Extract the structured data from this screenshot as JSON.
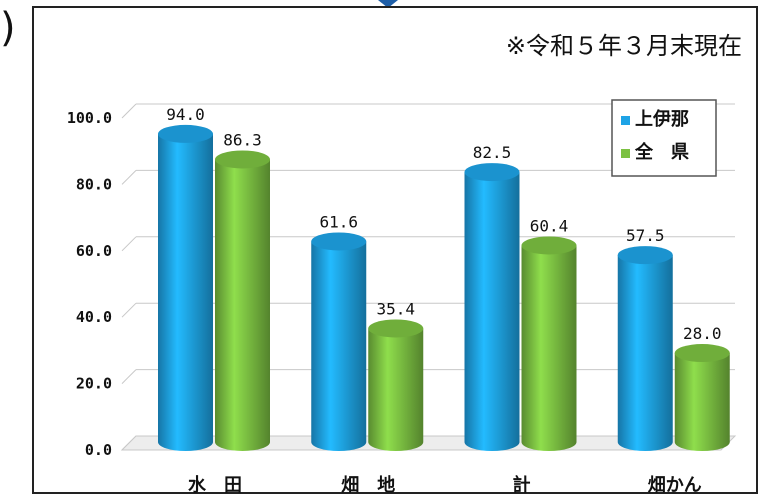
{
  "note": "※令和５年３月末現在",
  "paren": ")",
  "chart_data": {
    "type": "bar",
    "categories": [
      "水　田",
      "畑　地",
      "計",
      "畑かん"
    ],
    "series": [
      {
        "name": "上伊那",
        "values": [
          94.0,
          61.6,
          82.5,
          57.5
        ],
        "color": "#1ea3e6"
      },
      {
        "name": "全　県",
        "values": [
          86.3,
          35.4,
          60.4,
          28.0
        ],
        "color": "#7cc142"
      }
    ],
    "value_labels": [
      [
        "94.0",
        "61.6",
        "82.5",
        "57.5"
      ],
      [
        "86.3",
        "35.4",
        "60.4",
        "28.0"
      ]
    ],
    "yticks": [
      "0.0",
      "20.0",
      "40.0",
      "60.0",
      "80.0",
      "100.0"
    ],
    "ylim": [
      0,
      100
    ],
    "legend_position": "top-right",
    "grid": true,
    "style": "3d-cylinder"
  }
}
